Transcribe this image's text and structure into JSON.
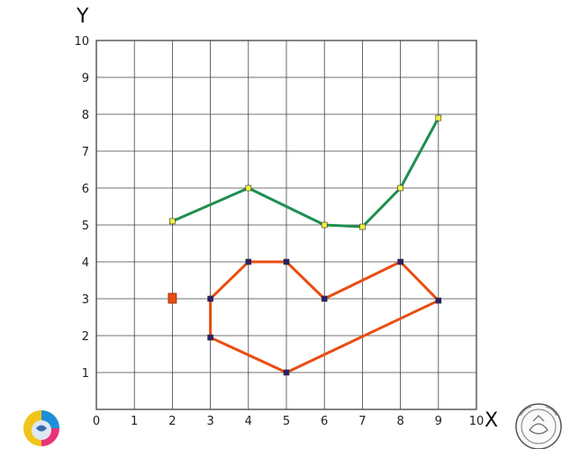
{
  "chart_data": {
    "type": "line",
    "xlabel": "X",
    "ylabel": "Y",
    "xlim": [
      0,
      10
    ],
    "ylim": [
      0,
      10
    ],
    "x_ticks": [
      "0",
      "1",
      "2",
      "3",
      "4",
      "5",
      "6",
      "7",
      "8",
      "9",
      "10"
    ],
    "y_ticks": [
      "1",
      "2",
      "3",
      "4",
      "5",
      "6",
      "7",
      "8",
      "9",
      "10"
    ],
    "grid": true,
    "series": [
      {
        "color": "#1f8f4e",
        "marker_color": "#f5f03c",
        "points": [
          [
            2,
            5.1
          ],
          [
            4,
            6
          ],
          [
            6,
            5
          ],
          [
            7,
            4.95
          ],
          [
            8,
            6
          ],
          [
            9,
            7.9
          ]
        ]
      },
      {
        "color": "#e84e12",
        "marker_color": "#2b1f6e",
        "closed": true,
        "points": [
          [
            3,
            3
          ],
          [
            4,
            4
          ],
          [
            5,
            4
          ],
          [
            6,
            3
          ],
          [
            8,
            4
          ],
          [
            9,
            2.95
          ],
          [
            5,
            1
          ],
          [
            3,
            1.95
          ]
        ]
      }
    ],
    "extra_markers": [
      {
        "x": 2,
        "y": 3,
        "color": "#e84e12"
      }
    ]
  },
  "logos": {
    "left": "e-learning-logo-icon",
    "right": "university-seal-icon"
  }
}
